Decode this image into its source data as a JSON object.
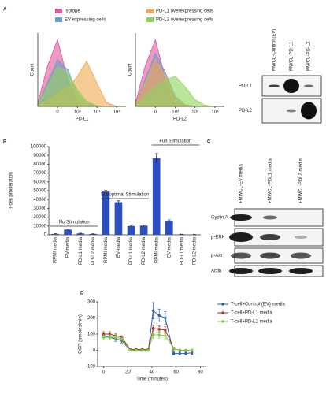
{
  "panel_labels": [
    "A",
    "B",
    "C",
    "D"
  ],
  "chart_data": [
    {
      "type": "area",
      "xlabel": "PD-L1",
      "ylabel": "Count",
      "xscale": "asinh",
      "x": [
        -1000,
        -300,
        0,
        300,
        1000,
        3000,
        10000,
        30000,
        100000,
        300000
      ],
      "xlim": [
        -1000,
        300000
      ],
      "xticks": [
        {
          "value": 0,
          "label": "0"
        },
        {
          "value": 1000,
          "label": "10³"
        },
        {
          "value": 10000,
          "label": "10⁴"
        },
        {
          "value": 100000,
          "label": "10⁵"
        }
      ],
      "ylim": [
        0,
        110
      ],
      "series": [
        {
          "name": "Isotope",
          "color": "#e0569a",
          "values": [
            5,
            60,
            100,
            40,
            8,
            2,
            0,
            0,
            0,
            0
          ]
        },
        {
          "name": "EV expressing cells",
          "color": "#6b9bd2",
          "values": [
            3,
            35,
            70,
            55,
            20,
            5,
            1,
            0,
            0,
            0
          ]
        },
        {
          "name": "PD-L1 overexpressing cells",
          "color": "#f0a850",
          "values": [
            2,
            8,
            20,
            28,
            45,
            68,
            35,
            6,
            0,
            0
          ]
        },
        {
          "name": "PD-L2 overexpressing cells",
          "color": "#8fd35a",
          "values": [
            3,
            30,
            60,
            50,
            25,
            8,
            1,
            0,
            0,
            0
          ]
        }
      ]
    },
    {
      "type": "area",
      "xlabel": "PD-L2",
      "ylabel": "Count",
      "xscale": "asinh",
      "x": [
        -1000,
        -300,
        0,
        300,
        1000,
        3000,
        10000,
        30000,
        100000,
        300000
      ],
      "xlim": [
        -1000,
        300000
      ],
      "xticks": [
        {
          "value": 0,
          "label": "0"
        },
        {
          "value": 1000,
          "label": "10³"
        },
        {
          "value": 10000,
          "label": "10⁴"
        },
        {
          "value": 100000,
          "label": "10⁵"
        }
      ],
      "ylim": [
        0,
        110
      ],
      "series": [
        {
          "color": "#e0569a",
          "values": [
            5,
            60,
            100,
            40,
            8,
            2,
            0,
            0,
            0,
            0
          ]
        },
        {
          "color": "#6b9bd2",
          "values": [
            3,
            40,
            80,
            50,
            15,
            3,
            0,
            0,
            0,
            0
          ]
        },
        {
          "color": "#f0a850",
          "values": [
            3,
            35,
            70,
            45,
            12,
            3,
            0,
            0,
            0,
            0
          ]
        },
        {
          "color": "#8fd35a",
          "values": [
            2,
            15,
            30,
            40,
            45,
            30,
            10,
            2,
            0,
            0
          ]
        }
      ]
    },
    {
      "type": "bar",
      "ylabel": "T-cell proliferation",
      "color": "#2a4fc1",
      "categories": [
        "RPMI media",
        "EV-media",
        "PD-L1 media",
        "PD-L2 media",
        "RPMI media",
        "EV-media",
        "PD-L1 media",
        "PD-L2 media",
        "RPMI media",
        "EV-media",
        "PD-L1 media",
        "PD-L2 media"
      ],
      "values": [
        1000,
        6000,
        1500,
        1000,
        49000,
        37000,
        10000,
        10500,
        87000,
        16000,
        500,
        300
      ],
      "errors": [
        500,
        800,
        300,
        300,
        1500,
        1500,
        800,
        800,
        5000,
        1000,
        200,
        200
      ],
      "ylim": [
        0,
        100000
      ],
      "yticks": [
        0,
        10000,
        20000,
        30000,
        40000,
        50000,
        60000,
        70000,
        80000,
        90000,
        100000
      ],
      "annotations": [
        "No Stimulation",
        "Suboptimal Stimulation",
        "Full Stimulation"
      ]
    },
    {
      "type": "line",
      "xlabel": "Time (minutes)",
      "ylabel": "OCR (pmoles/min)",
      "x": [
        0,
        5,
        10,
        15,
        22,
        27,
        32,
        37,
        41,
        46,
        51,
        58,
        63,
        68,
        73
      ],
      "xlim": [
        -5,
        85
      ],
      "xticks": [
        0,
        20,
        40,
        60,
        80
      ],
      "ylim": [
        -100,
        300
      ],
      "yticks": [
        -100,
        0,
        100,
        200,
        300
      ],
      "series": [
        {
          "name": "T-cell+Control (EV) media",
          "color": "#2c5fb8",
          "values": [
            90,
            80,
            70,
            60,
            0,
            0,
            0,
            0,
            245,
            215,
            200,
            -20,
            -20,
            -20,
            -15
          ],
          "errors": [
            15,
            15,
            15,
            15,
            5,
            5,
            5,
            5,
            50,
            40,
            40,
            10,
            10,
            10,
            10
          ]
        },
        {
          "name": "T-cell+PD-L1 media",
          "color": "#b5302a",
          "values": [
            100,
            100,
            90,
            80,
            5,
            5,
            5,
            5,
            135,
            130,
            125,
            10,
            0,
            0,
            0
          ],
          "errors": [
            15,
            15,
            15,
            10,
            5,
            5,
            5,
            5,
            20,
            20,
            20,
            10,
            5,
            5,
            5
          ]
        },
        {
          "name": "T-cell+PD-L2 media",
          "color": "#7ccf3c",
          "values": [
            80,
            80,
            80,
            70,
            0,
            0,
            0,
            0,
            95,
            95,
            90,
            10,
            0,
            0,
            0
          ],
          "errors": [
            15,
            15,
            15,
            10,
            5,
            5,
            5,
            5,
            20,
            20,
            20,
            10,
            5,
            5,
            5
          ]
        }
      ]
    }
  ],
  "blots": [
    {
      "columns": [
        "MWCL-Control (EV)",
        "MWCL-PD-L1",
        "MWCL-PD-L2"
      ],
      "rows": [
        "PD-L1",
        "PD-L2"
      ]
    },
    {
      "columns": [
        "+MWCL-EV media",
        "+MWCL-PDL1 media",
        "+MWCL-PDL2 media"
      ],
      "rows": [
        "Cyclin A",
        "p-ERK",
        "p-Akt",
        "Actin"
      ]
    }
  ]
}
